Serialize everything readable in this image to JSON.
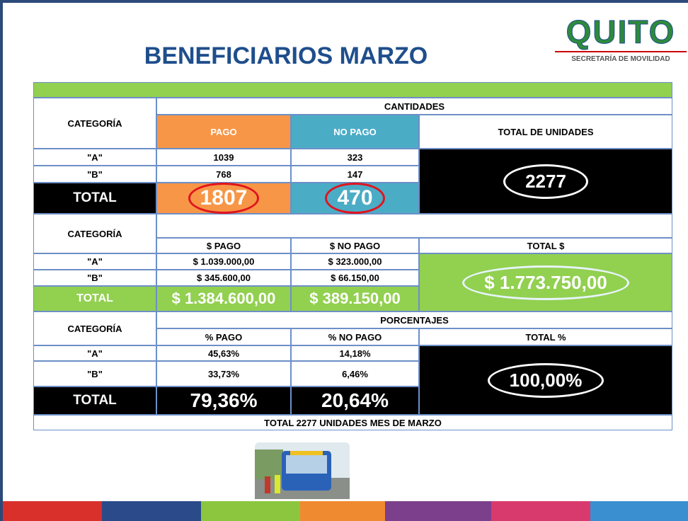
{
  "title": "BENEFICIARIOS MARZO",
  "logo": {
    "name": "QUITO",
    "subtitle": "SECRETARÍA DE MOVILIDAD"
  },
  "cantidades": {
    "category_header": "CATEGORÍA",
    "header": "CANTIDADES",
    "columns": [
      "PAGO",
      "NO PAGO",
      "TOTAL DE UNIDADES"
    ],
    "rows": [
      [
        "\"A\"",
        "1039",
        "323"
      ],
      [
        "\"B\"",
        "768",
        "147"
      ],
      [
        "TOTAL",
        "1807",
        "470"
      ]
    ],
    "grand_total": "2277"
  },
  "dinero": {
    "category_header": "CATEGORÍA",
    "columns": [
      "$ PAGO",
      "$ NO PAGO",
      "TOTAL $"
    ],
    "rows": [
      [
        "\"A\"",
        "$ 1.039.000,00",
        "$ 323.000,00"
      ],
      [
        "\"B\"",
        "$ 345.600,00",
        "$ 66.150,00"
      ],
      [
        "TOTAL",
        "$ 1.384.600,00",
        "$ 389.150,00"
      ]
    ],
    "grand_total": "$ 1.773.750,00"
  },
  "porcentajes": {
    "category_header": "CATEGORÍA",
    "header": "PORCENTAJES",
    "columns": [
      "% PAGO",
      "% NO PAGO",
      "TOTAL %"
    ],
    "rows": [
      [
        "\"A\"",
        "45,63%",
        "14,18%"
      ],
      [
        "\"B\"",
        "33,73%",
        "6,46%"
      ],
      [
        "TOTAL",
        "79,36%",
        "20,64%"
      ]
    ],
    "grand_total": "100,00%"
  },
  "footer": "TOTAL 2277 UNIDADES MES DE MARZO"
}
